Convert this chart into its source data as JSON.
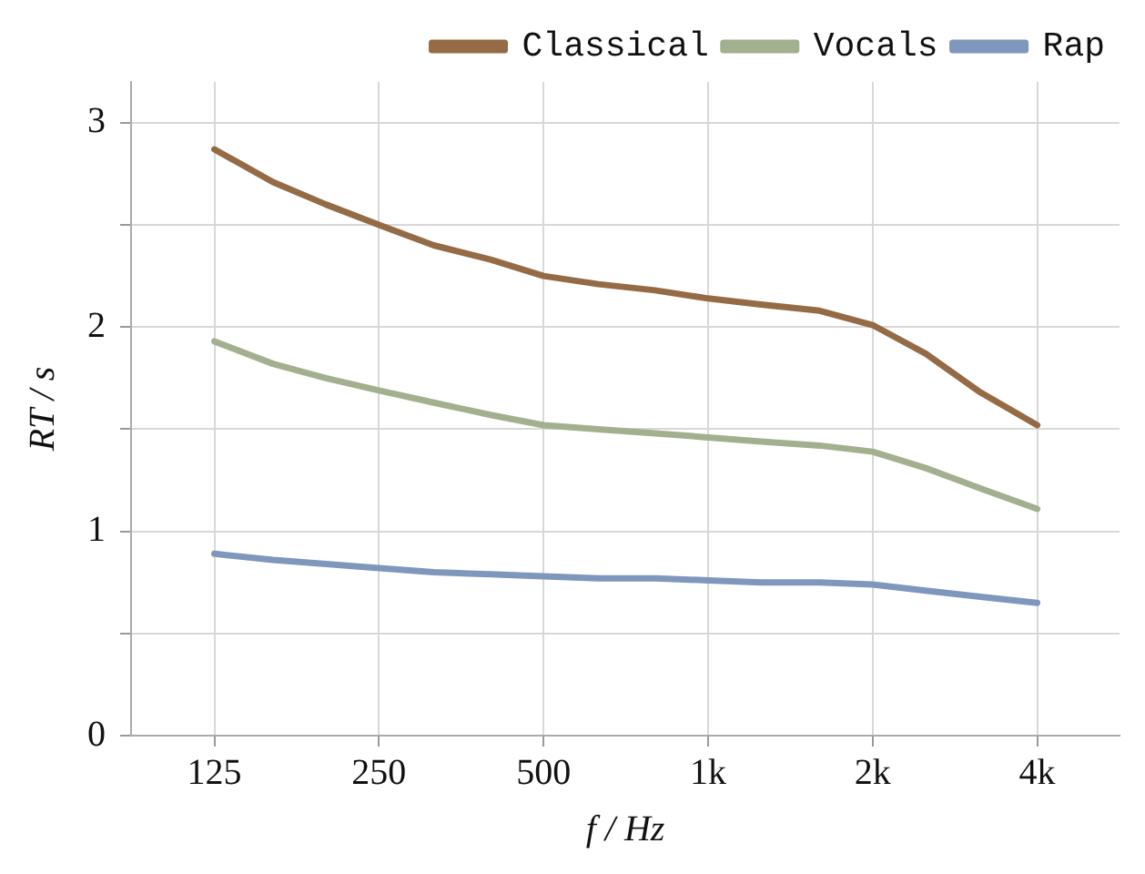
{
  "chart_data": {
    "type": "line",
    "xlabel": "f / Hz",
    "ylabel": "RT / s",
    "x": [
      125,
      160,
      200,
      250,
      315,
      400,
      500,
      630,
      800,
      1000,
      1250,
      1600,
      2000,
      2500,
      3150,
      4000
    ],
    "series": [
      {
        "name": "Classical",
        "color": "#956b45",
        "values": [
          2.87,
          2.71,
          2.6,
          2.5,
          2.4,
          2.33,
          2.25,
          2.21,
          2.18,
          2.14,
          2.11,
          2.08,
          2.01,
          1.87,
          1.68,
          1.52
        ]
      },
      {
        "name": "Vocals",
        "color": "#a3b08f",
        "values": [
          1.93,
          1.82,
          1.75,
          1.69,
          1.63,
          1.57,
          1.52,
          1.5,
          1.48,
          1.46,
          1.44,
          1.42,
          1.39,
          1.31,
          1.21,
          1.11
        ]
      },
      {
        "name": "Rap",
        "color": "#7f96bd",
        "values": [
          0.89,
          0.86,
          0.84,
          0.82,
          0.8,
          0.79,
          0.78,
          0.77,
          0.77,
          0.76,
          0.75,
          0.75,
          0.74,
          0.71,
          0.68,
          0.65
        ]
      }
    ],
    "log": "x",
    "xlim": [
      88,
      5657
    ],
    "xticks": [
      125,
      250,
      500,
      {
        "value": 1000,
        "label": "1k"
      },
      {
        "value": 2000,
        "label": "2k"
      },
      {
        "value": 4000,
        "label": "4k"
      }
    ],
    "ylim": [
      0,
      3.2
    ],
    "yticks": [
      0,
      {
        "value": 0.5,
        "label": null
      },
      1,
      {
        "value": 1.5,
        "label": null
      },
      2,
      {
        "value": 2.5,
        "label": null
      },
      3
    ],
    "grid": true,
    "legend": "top right",
    "marker": "none",
    "line_style": "solid"
  }
}
